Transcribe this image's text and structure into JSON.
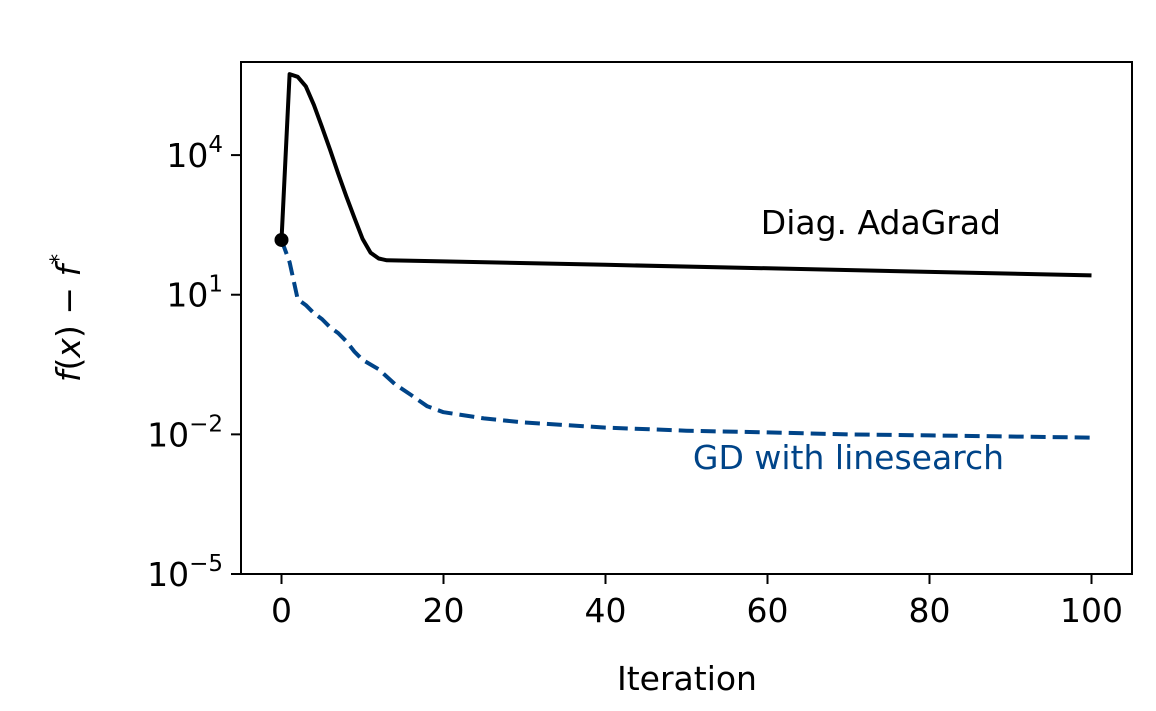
{
  "chart_data": {
    "type": "line",
    "title": "",
    "xlabel": "Iteration",
    "ylabel": "f(x) − f*",
    "ylabel_parts": {
      "f": "f",
      "x": "x",
      "fstar_sup": "*"
    },
    "x_scale": "linear",
    "y_scale": "log",
    "xlim": [
      -5,
      105
    ],
    "ylim": [
      1e-05,
      1000000
    ],
    "xticks": [
      0,
      20,
      40,
      60,
      80,
      100
    ],
    "xtick_labels": [
      "0",
      "20",
      "40",
      "60",
      "80",
      "100"
    ],
    "yticks": [
      1e-05,
      0.01,
      10,
      10000
    ],
    "ytick_labels": [
      {
        "base": "10",
        "exp": "−5"
      },
      {
        "base": "10",
        "exp": "−2"
      },
      {
        "base": "10",
        "exp": "1"
      },
      {
        "base": "10",
        "exp": "4"
      }
    ],
    "grid": false,
    "legend": "none",
    "series": [
      {
        "name": "Diag. AdaGrad",
        "color": "#000000",
        "style": "solid",
        "points": [
          [
            0,
            150
          ],
          [
            1,
            550000
          ],
          [
            2,
            480000
          ],
          [
            3,
            300000
          ],
          [
            4,
            120000
          ],
          [
            5,
            40000
          ],
          [
            6,
            13000
          ],
          [
            7,
            4000
          ],
          [
            8,
            1300
          ],
          [
            9,
            450
          ],
          [
            10,
            160
          ],
          [
            11,
            80
          ],
          [
            12,
            60
          ],
          [
            13,
            55
          ],
          [
            20,
            52
          ],
          [
            40,
            44
          ],
          [
            60,
            37
          ],
          [
            80,
            31
          ],
          [
            100,
            26
          ]
        ]
      },
      {
        "name": "GD with linesearch",
        "color": "#004488",
        "style": "dashed",
        "points": [
          [
            0,
            150
          ],
          [
            1,
            50
          ],
          [
            2,
            8
          ],
          [
            3,
            6
          ],
          [
            4,
            4
          ],
          [
            5,
            3
          ],
          [
            6,
            2
          ],
          [
            7,
            1.5
          ],
          [
            8,
            1
          ],
          [
            9,
            0.6
          ],
          [
            10,
            0.4
          ],
          [
            12,
            0.25
          ],
          [
            14,
            0.12
          ],
          [
            16,
            0.07
          ],
          [
            18,
            0.04
          ],
          [
            20,
            0.03
          ],
          [
            25,
            0.022
          ],
          [
            30,
            0.018
          ],
          [
            40,
            0.014
          ],
          [
            50,
            0.012
          ],
          [
            60,
            0.011
          ],
          [
            70,
            0.01
          ],
          [
            80,
            0.0095
          ],
          [
            90,
            0.009
          ],
          [
            100,
            0.0085
          ]
        ]
      }
    ],
    "start_marker": {
      "x": 0,
      "y": 150
    },
    "annotations": [
      {
        "text": "Diag. AdaGrad",
        "color": "#000000",
        "x": 74,
        "y": 200
      },
      {
        "text": "GD with linesearch",
        "color": "#004488",
        "x": 70,
        "y": 0.0018
      }
    ]
  }
}
